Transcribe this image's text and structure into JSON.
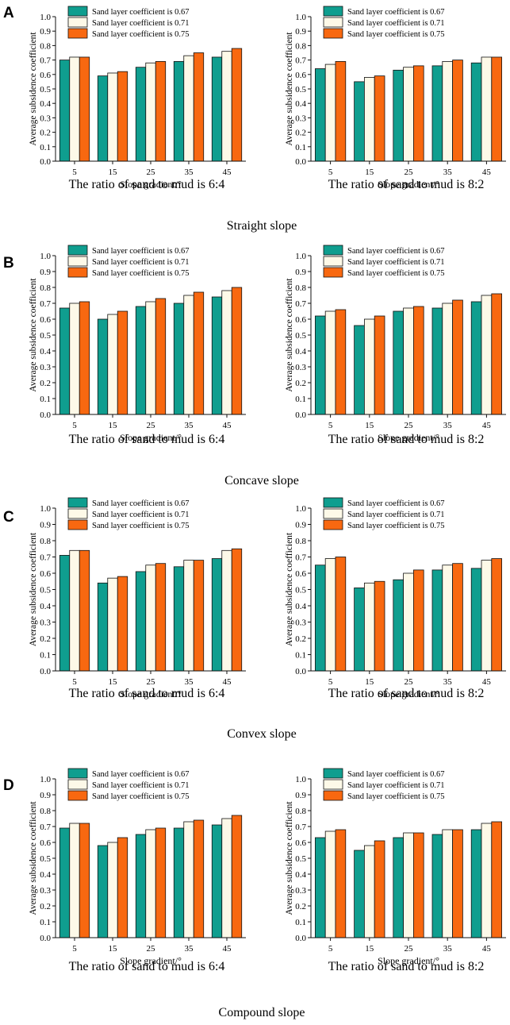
{
  "colors": {
    "s067": "#0f9e8f",
    "s071": "#fdf9e8",
    "s075": "#f86810",
    "stroke": "#111111"
  },
  "chart_data": [
    {
      "type": "bar",
      "panel": "A",
      "slope": "Straight slope",
      "ylabel": "Average subsidence coefficient",
      "ylim": [
        0,
        1.0
      ],
      "yticks": [
        "0.0",
        "0.1",
        "0.2",
        "0.3",
        "0.4",
        "0.5",
        "0.6",
        "0.7",
        "0.8",
        "0.9",
        "1.0"
      ],
      "charts": [
        {
          "caption": "The ratio of sand to mud is 6:4",
          "xlabel": "Slope gradient/°",
          "categories": [
            "5",
            "15",
            "25",
            "35",
            "45"
          ],
          "series": [
            {
              "name": "Sand layer coefficient is 0.67",
              "values": [
                0.7,
                0.59,
                0.65,
                0.69,
                0.72
              ]
            },
            {
              "name": "Sand layer coefficient is 0.71",
              "values": [
                0.72,
                0.61,
                0.68,
                0.73,
                0.76
              ]
            },
            {
              "name": "Sand layer coefficient is 0.75",
              "values": [
                0.72,
                0.62,
                0.69,
                0.75,
                0.78
              ]
            }
          ]
        },
        {
          "caption": "The ratio of sand to mud is 8:2",
          "xlabel": "Slope gradient/°",
          "categories": [
            "5",
            "15",
            "25",
            "35",
            "45"
          ],
          "series": [
            {
              "name": "Sand layer coefficient is 0.67",
              "values": [
                0.64,
                0.55,
                0.63,
                0.66,
                0.68
              ]
            },
            {
              "name": "Sand layer coefficient is 0.71",
              "values": [
                0.67,
                0.58,
                0.65,
                0.69,
                0.72
              ]
            },
            {
              "name": "Sand layer coefficient is 0.75",
              "values": [
                0.69,
                0.59,
                0.66,
                0.7,
                0.72
              ]
            }
          ]
        }
      ]
    },
    {
      "type": "bar",
      "panel": "B",
      "slope": "Concave slope",
      "ylabel": "Average subsidence coefficient",
      "ylim": [
        0,
        1.0
      ],
      "yticks": [
        "0.0",
        "0.1",
        "0.2",
        "0.3",
        "0.4",
        "0.5",
        "0.6",
        "0.7",
        "0.8",
        "0.9",
        "1.0"
      ],
      "charts": [
        {
          "caption": "The ratio of sand to mud is 6:4",
          "xlabel": "Slope gradient/°",
          "categories": [
            "5",
            "15",
            "25",
            "35",
            "45"
          ],
          "series": [
            {
              "name": "Sand layer coefficient is 0.67",
              "values": [
                0.67,
                0.6,
                0.68,
                0.7,
                0.74
              ]
            },
            {
              "name": "Sand layer coefficient is 0.71",
              "values": [
                0.7,
                0.63,
                0.71,
                0.75,
                0.78
              ]
            },
            {
              "name": "Sand layer coefficient is 0.75",
              "values": [
                0.71,
                0.65,
                0.73,
                0.77,
                0.8
              ]
            }
          ]
        },
        {
          "caption": "The ratio of sand to mud is 8:2",
          "xlabel": "Slope gradient/°",
          "categories": [
            "5",
            "15",
            "25",
            "35",
            "45"
          ],
          "series": [
            {
              "name": "Sand layer coefficient is 0.67",
              "values": [
                0.62,
                0.56,
                0.65,
                0.67,
                0.71
              ]
            },
            {
              "name": "Sand layer coefficient is 0.71",
              "values": [
                0.65,
                0.6,
                0.67,
                0.7,
                0.75
              ]
            },
            {
              "name": "Sand layer coefficient is 0.75",
              "values": [
                0.66,
                0.62,
                0.68,
                0.72,
                0.76
              ]
            }
          ]
        }
      ]
    },
    {
      "type": "bar",
      "panel": "C",
      "slope": "Convex slope",
      "ylabel": "Average subsidence coefficient",
      "ylim": [
        0,
        1.0
      ],
      "yticks": [
        "0.0",
        "0.1",
        "0.2",
        "0.3",
        "0.4",
        "0.5",
        "0.6",
        "0.7",
        "0.8",
        "0.9",
        "1.0"
      ],
      "charts": [
        {
          "caption": "The ratio of sand to mud is 6:4",
          "xlabel": "Slope gradient/°",
          "categories": [
            "5",
            "15",
            "25",
            "35",
            "45"
          ],
          "series": [
            {
              "name": "Sand layer coefficient is 0.67",
              "values": [
                0.71,
                0.54,
                0.61,
                0.64,
                0.69
              ]
            },
            {
              "name": "Sand layer coefficient is 0.71",
              "values": [
                0.74,
                0.57,
                0.65,
                0.68,
                0.74
              ]
            },
            {
              "name": "Sand layer coefficient is 0.75",
              "values": [
                0.74,
                0.58,
                0.66,
                0.68,
                0.75
              ]
            }
          ]
        },
        {
          "caption": "The ratio of sand to mud is 8:2",
          "xlabel": "Slope gradient/°",
          "categories": [
            "5",
            "15",
            "25",
            "35",
            "45"
          ],
          "series": [
            {
              "name": "Sand layer coefficient is 0.67",
              "values": [
                0.65,
                0.51,
                0.56,
                0.62,
                0.63
              ]
            },
            {
              "name": "Sand layer coefficient is 0.71",
              "values": [
                0.69,
                0.54,
                0.6,
                0.65,
                0.68
              ]
            },
            {
              "name": "Sand layer coefficient is 0.75",
              "values": [
                0.7,
                0.55,
                0.62,
                0.66,
                0.69
              ]
            }
          ]
        }
      ]
    },
    {
      "type": "bar",
      "panel": "D",
      "slope": "Compound slope",
      "ylabel": "Average subsidence coefficient",
      "ylim": [
        0,
        1.0
      ],
      "yticks": [
        "0.0",
        "0.1",
        "0.2",
        "0.3",
        "0.4",
        "0.5",
        "0.6",
        "0.7",
        "0.8",
        "0.9",
        "1.0"
      ],
      "charts": [
        {
          "caption": "The ratio of sand to mud is 6:4",
          "xlabel": "Slope gradient/°",
          "categories": [
            "5",
            "15",
            "25",
            "35",
            "45"
          ],
          "series": [
            {
              "name": "Sand layer coefficient is 0.67",
              "values": [
                0.69,
                0.58,
                0.65,
                0.69,
                0.71
              ]
            },
            {
              "name": "Sand layer coefficient is 0.71",
              "values": [
                0.72,
                0.6,
                0.68,
                0.73,
                0.75
              ]
            },
            {
              "name": "Sand layer coefficient is 0.75",
              "values": [
                0.72,
                0.63,
                0.69,
                0.74,
                0.77
              ]
            }
          ]
        },
        {
          "caption": "The ratio of sand to mud is 8:2",
          "xlabel": "Slope gradient/°",
          "categories": [
            "5",
            "15",
            "25",
            "35",
            "45"
          ],
          "series": [
            {
              "name": "Sand layer coefficient is 0.67",
              "values": [
                0.63,
                0.55,
                0.63,
                0.65,
                0.68
              ]
            },
            {
              "name": "Sand layer coefficient is 0.71",
              "values": [
                0.67,
                0.58,
                0.66,
                0.68,
                0.72
              ]
            },
            {
              "name": "Sand layer coefficient is 0.75",
              "values": [
                0.68,
                0.61,
                0.66,
                0.68,
                0.73
              ]
            }
          ]
        }
      ]
    }
  ]
}
